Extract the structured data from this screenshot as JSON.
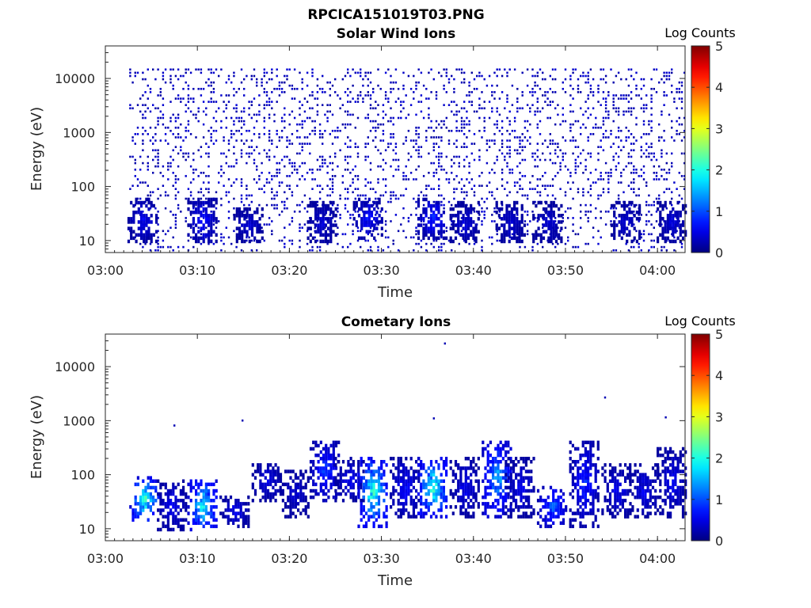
{
  "figure_title": "RPCICA151019T03.PNG",
  "chart_data": [
    {
      "type": "heatmap",
      "title": "Solar Wind Ions",
      "xlabel": "Time",
      "ylabel": "Energy (eV)",
      "yscale": "log",
      "ylim": [
        6,
        40000
      ],
      "xlim": [
        "03:00",
        "04:03"
      ],
      "x_ticks": [
        "03:00",
        "03:10",
        "03:20",
        "03:30",
        "03:40",
        "03:50",
        "04:00"
      ],
      "y_ticks": [
        "10",
        "100",
        "1000",
        "10000"
      ],
      "colorbar": {
        "label": "Log Counts",
        "range": [
          0,
          5
        ],
        "ticks": [
          "0",
          "1",
          "2",
          "3",
          "4",
          "5"
        ]
      },
      "bursts": [
        {
          "t_min": 4.0,
          "e_lo": 8,
          "e_hi": 60,
          "level": 0.5
        },
        {
          "t_min": 10.5,
          "e_lo": 8,
          "e_hi": 60,
          "level": 0.6
        },
        {
          "t_min": 15.5,
          "e_lo": 8,
          "e_hi": 40,
          "level": 0.4
        },
        {
          "t_min": 23.5,
          "e_lo": 8,
          "e_hi": 50,
          "level": 0.4
        },
        {
          "t_min": 28.5,
          "e_lo": 10,
          "e_hi": 60,
          "level": 0.6
        },
        {
          "t_min": 35.5,
          "e_lo": 10,
          "e_hi": 60,
          "level": 0.7
        },
        {
          "t_min": 39.0,
          "e_lo": 8,
          "e_hi": 50,
          "level": 0.4
        },
        {
          "t_min": 44.0,
          "e_lo": 8,
          "e_hi": 50,
          "level": 0.4
        },
        {
          "t_min": 48.0,
          "e_lo": 8,
          "e_hi": 50,
          "level": 0.4
        },
        {
          "t_min": 56.5,
          "e_lo": 8,
          "e_hi": 50,
          "level": 0.4
        },
        {
          "t_min": 61.5,
          "e_lo": 8,
          "e_hi": 50,
          "level": 0.4
        }
      ],
      "background": {
        "e_lo": 6,
        "e_hi": 14000,
        "level": 0.3
      }
    },
    {
      "type": "heatmap",
      "title": "Cometary Ions",
      "xlabel": "Time",
      "ylabel": "Energy (eV)",
      "yscale": "log",
      "ylim": [
        6,
        40000
      ],
      "xlim": [
        "03:00",
        "04:03"
      ],
      "x_ticks": [
        "03:00",
        "03:10",
        "03:20",
        "03:30",
        "03:40",
        "03:50",
        "04:00"
      ],
      "y_ticks": [
        "10",
        "100",
        "1000",
        "10000"
      ],
      "colorbar": {
        "label": "Log Counts",
        "range": [
          0,
          5
        ],
        "ticks": [
          "0",
          "1",
          "2",
          "3",
          "4",
          "5"
        ]
      },
      "bursts": [
        {
          "t_min": 4.2,
          "e_lo": 12,
          "e_hi": 85,
          "level": 1.8
        },
        {
          "t_min": 7.2,
          "e_lo": 8,
          "e_hi": 80,
          "level": 0.5
        },
        {
          "t_min": 10.5,
          "e_lo": 8,
          "e_hi": 80,
          "level": 1.6
        },
        {
          "t_min": 14.0,
          "e_lo": 10,
          "e_hi": 40,
          "level": 0.5
        },
        {
          "t_min": 17.5,
          "e_lo": 30,
          "e_hi": 150,
          "level": 0.5
        },
        {
          "t_min": 20.5,
          "e_lo": 15,
          "e_hi": 120,
          "level": 0.4
        },
        {
          "t_min": 23.8,
          "e_lo": 30,
          "e_hi": 400,
          "level": 0.8
        },
        {
          "t_min": 26.5,
          "e_lo": 30,
          "e_hi": 200,
          "level": 0.5
        },
        {
          "t_min": 29.0,
          "e_lo": 10,
          "e_hi": 200,
          "level": 1.8
        },
        {
          "t_min": 32.5,
          "e_lo": 15,
          "e_hi": 200,
          "level": 0.6
        },
        {
          "t_min": 35.5,
          "e_lo": 15,
          "e_hi": 200,
          "level": 1.8
        },
        {
          "t_min": 39.0,
          "e_lo": 15,
          "e_hi": 200,
          "level": 0.5
        },
        {
          "t_min": 42.5,
          "e_lo": 15,
          "e_hi": 400,
          "level": 1.3
        },
        {
          "t_min": 45.0,
          "e_lo": 15,
          "e_hi": 200,
          "level": 0.5
        },
        {
          "t_min": 48.5,
          "e_lo": 10,
          "e_hi": 60,
          "level": 1.0
        },
        {
          "t_min": 52.0,
          "e_lo": 10,
          "e_hi": 400,
          "level": 0.7
        },
        {
          "t_min": 55.5,
          "e_lo": 15,
          "e_hi": 150,
          "level": 0.5
        },
        {
          "t_min": 58.5,
          "e_lo": 15,
          "e_hi": 150,
          "level": 0.5
        },
        {
          "t_min": 61.5,
          "e_lo": 15,
          "e_hi": 300,
          "level": 0.5
        }
      ],
      "sparse_points": [
        {
          "t_min": 36.8,
          "energy": 28000
        },
        {
          "t_min": 7.4,
          "energy": 850
        },
        {
          "t_min": 14.8,
          "energy": 1050
        },
        {
          "t_min": 35.6,
          "energy": 1150
        },
        {
          "t_min": 54.2,
          "energy": 2800
        },
        {
          "t_min": 60.8,
          "energy": 1200
        }
      ]
    }
  ]
}
